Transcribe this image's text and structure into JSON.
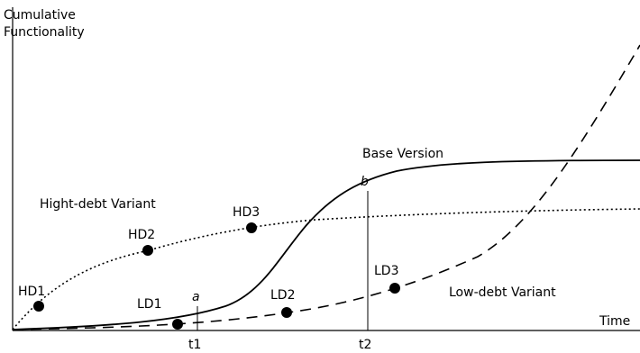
{
  "axes": {
    "y_label_line1": "Cumulative",
    "y_label_line2": "Functionality",
    "x_label": "Time",
    "t1_label": "t1",
    "t2_label": "t2"
  },
  "curves": {
    "base": "Base Version",
    "high_debt": "Hight-debt Variant",
    "low_debt": "Low-debt Variant"
  },
  "points": {
    "hd1": "HD1",
    "hd2": "HD2",
    "hd3": "HD3",
    "ld1": "LD1",
    "ld2": "LD2",
    "ld3": "LD3",
    "a": "a",
    "b": "b"
  }
}
